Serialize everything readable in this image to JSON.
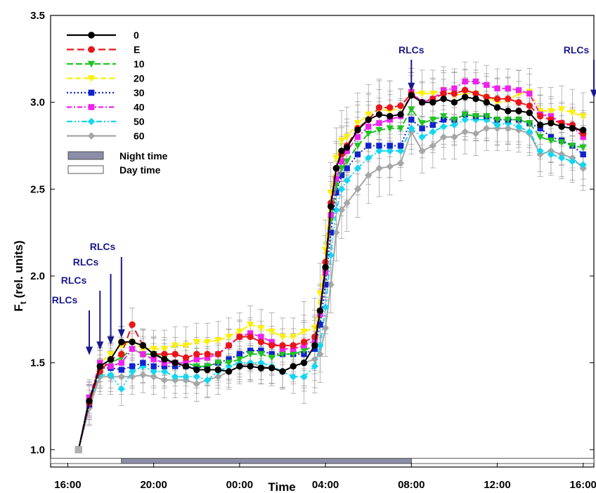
{
  "chart_data": {
    "type": "line",
    "title": "",
    "xlabel": "Time",
    "ylabel": "Ft (rel. units)",
    "ylabel_main": "F",
    "ylabel_sub": "t",
    "ylabel_rest": "(rel. units)",
    "ylim": [
      0.9,
      3.5
    ],
    "xlim_hours": [
      15.2,
      16.5
    ],
    "xticks": [
      {
        "hour": 16,
        "label": "16:00"
      },
      {
        "hour": 20,
        "label": "20:00"
      },
      {
        "hour": 24,
        "label": "00:00"
      },
      {
        "hour": 28,
        "label": "04:00"
      },
      {
        "hour": 32,
        "label": "08:00"
      },
      {
        "hour": 36,
        "label": "12:00"
      },
      {
        "hour": 40,
        "label": "16:00"
      }
    ],
    "yticks": [
      {
        "value": 1.0,
        "label": "1.0"
      },
      {
        "value": 1.5,
        "label": "1.5"
      },
      {
        "value": 2.0,
        "label": "2.0"
      },
      {
        "value": 2.5,
        "label": "2.5"
      },
      {
        "value": 3.0,
        "label": "3.0"
      },
      {
        "value": 3.5,
        "label": "3.5"
      }
    ],
    "x": [
      16.5,
      17.0,
      17.5,
      18.0,
      18.5,
      19.0,
      19.5,
      20.0,
      20.5,
      21.0,
      21.5,
      22.0,
      22.5,
      23.0,
      23.5,
      24.0,
      24.5,
      25.0,
      25.5,
      26.0,
      26.5,
      27.0,
      27.5,
      27.75,
      28.0,
      28.25,
      28.5,
      28.75,
      29.0,
      29.5,
      30.0,
      30.5,
      31.0,
      31.5,
      32.0,
      32.5,
      33.0,
      33.5,
      34.0,
      34.5,
      35.0,
      35.5,
      36.0,
      36.5,
      37.0,
      37.5,
      38.0,
      38.5,
      39.0,
      39.5,
      40.0
    ],
    "series": [
      {
        "name": "0",
        "color": "#000000",
        "dash": "",
        "marker": "circle",
        "values": [
          1.0,
          1.28,
          1.48,
          1.52,
          1.62,
          1.62,
          1.6,
          1.55,
          1.52,
          1.5,
          1.48,
          1.46,
          1.46,
          1.46,
          1.45,
          1.48,
          1.48,
          1.47,
          1.47,
          1.45,
          1.48,
          1.5,
          1.6,
          1.8,
          2.05,
          2.4,
          2.62,
          2.72,
          2.74,
          2.84,
          2.9,
          2.93,
          2.92,
          2.93,
          3.04,
          3.0,
          3.0,
          3.02,
          3.0,
          3.03,
          3.02,
          3.0,
          2.97,
          2.95,
          2.95,
          2.94,
          2.87,
          2.88,
          2.86,
          2.85,
          2.84
        ]
      },
      {
        "name": "E",
        "color": "#e8161b",
        "dash": "10,5",
        "marker": "circle",
        "values": [
          1.0,
          1.27,
          1.45,
          1.52,
          1.55,
          1.72,
          1.6,
          1.55,
          1.55,
          1.55,
          1.53,
          1.55,
          1.55,
          1.55,
          1.6,
          1.65,
          1.65,
          1.62,
          1.6,
          1.6,
          1.6,
          1.62,
          1.65,
          1.8,
          2.08,
          2.42,
          2.62,
          2.7,
          2.75,
          2.85,
          2.9,
          2.97,
          2.97,
          2.98,
          3.05,
          3.0,
          3.02,
          3.05,
          3.05,
          3.07,
          3.05,
          3.03,
          3.02,
          3.02,
          3.0,
          2.98,
          2.92,
          2.9,
          2.88,
          2.87,
          2.82
        ]
      },
      {
        "name": "10",
        "color": "#1fc41f",
        "dash": "9,4",
        "marker": "tridown",
        "values": [
          1.0,
          1.3,
          1.47,
          1.5,
          1.53,
          1.58,
          1.55,
          1.55,
          1.53,
          1.5,
          1.5,
          1.48,
          1.48,
          1.5,
          1.5,
          1.52,
          1.55,
          1.55,
          1.53,
          1.55,
          1.55,
          1.57,
          1.6,
          1.78,
          2.02,
          2.32,
          2.52,
          2.62,
          2.66,
          2.75,
          2.82,
          2.84,
          2.85,
          2.85,
          2.96,
          2.88,
          2.9,
          2.92,
          2.9,
          2.93,
          2.92,
          2.92,
          2.9,
          2.9,
          2.9,
          2.88,
          2.8,
          2.78,
          2.77,
          2.75,
          2.74
        ]
      },
      {
        "name": "20",
        "color": "#fbf000",
        "dash": "8,4",
        "marker": "tridown",
        "values": [
          1.0,
          1.28,
          1.5,
          1.55,
          1.6,
          1.62,
          1.58,
          1.58,
          1.58,
          1.6,
          1.6,
          1.62,
          1.62,
          1.63,
          1.65,
          1.68,
          1.72,
          1.7,
          1.68,
          1.65,
          1.65,
          1.68,
          1.7,
          1.9,
          2.15,
          2.48,
          2.68,
          2.78,
          2.8,
          2.88,
          2.93,
          2.96,
          2.95,
          2.97,
          3.06,
          3.05,
          3.05,
          3.07,
          3.04,
          3.05,
          3.05,
          3.03,
          3.0,
          3.01,
          3.05,
          3.06,
          2.95,
          2.95,
          2.96,
          2.94,
          2.92
        ]
      },
      {
        "name": "30",
        "color": "#1122cc",
        "dash": "2,3",
        "marker": "square",
        "values": [
          1.0,
          1.26,
          1.47,
          1.47,
          1.46,
          1.48,
          1.5,
          1.48,
          1.48,
          1.48,
          1.48,
          1.47,
          1.48,
          1.5,
          1.52,
          1.55,
          1.57,
          1.57,
          1.55,
          1.55,
          1.55,
          1.55,
          1.58,
          1.72,
          1.95,
          2.25,
          2.48,
          2.58,
          2.62,
          2.7,
          2.75,
          2.75,
          2.75,
          2.75,
          2.9,
          2.85,
          2.87,
          2.9,
          2.9,
          2.93,
          2.92,
          2.92,
          2.9,
          2.9,
          2.9,
          2.88,
          2.85,
          2.8,
          2.78,
          2.75,
          2.7
        ]
      },
      {
        "name": "40",
        "color": "#ee22ee",
        "dash": "7,3,2,3",
        "marker": "square",
        "values": [
          1.0,
          1.3,
          1.5,
          1.48,
          1.5,
          1.58,
          1.55,
          1.52,
          1.5,
          1.5,
          1.5,
          1.52,
          1.53,
          1.55,
          1.6,
          1.65,
          1.67,
          1.65,
          1.62,
          1.58,
          1.58,
          1.6,
          1.63,
          1.78,
          2.02,
          2.35,
          2.56,
          2.66,
          2.72,
          2.8,
          2.86,
          2.88,
          2.9,
          2.92,
          3.06,
          3.0,
          3.02,
          3.07,
          3.08,
          3.12,
          3.12,
          3.1,
          3.08,
          3.08,
          3.07,
          3.05,
          2.93,
          2.92,
          2.88,
          2.86,
          2.8
        ]
      },
      {
        "name": "50",
        "color": "#13d6f0",
        "dash": "8,3,2,3,2,3",
        "marker": "diamond",
        "values": [
          1.0,
          1.28,
          1.43,
          1.43,
          1.35,
          1.45,
          1.48,
          1.45,
          1.45,
          1.42,
          1.42,
          1.42,
          1.4,
          1.45,
          1.48,
          1.5,
          1.5,
          1.5,
          1.48,
          1.45,
          1.42,
          1.42,
          1.48,
          1.6,
          1.82,
          2.12,
          2.38,
          2.5,
          2.55,
          2.62,
          2.68,
          2.72,
          2.72,
          2.72,
          2.85,
          2.8,
          2.83,
          2.86,
          2.87,
          2.9,
          2.9,
          2.9,
          2.87,
          2.88,
          2.86,
          2.83,
          2.72,
          2.7,
          2.68,
          2.66,
          2.64
        ]
      },
      {
        "name": "60",
        "color": "#a6a6a6",
        "dash": "",
        "marker": "diamond",
        "values": [
          1.0,
          1.24,
          1.42,
          1.42,
          1.42,
          1.42,
          1.43,
          1.42,
          1.4,
          1.4,
          1.4,
          1.38,
          1.4,
          1.42,
          1.45,
          1.48,
          1.5,
          1.48,
          1.47,
          1.45,
          1.48,
          1.5,
          1.52,
          1.55,
          1.7,
          1.95,
          2.25,
          2.38,
          2.42,
          2.5,
          2.58,
          2.62,
          2.63,
          2.65,
          2.83,
          2.72,
          2.75,
          2.8,
          2.8,
          2.83,
          2.82,
          2.85,
          2.85,
          2.85,
          2.84,
          2.82,
          2.7,
          2.72,
          2.7,
          2.68,
          2.62
        ]
      }
    ],
    "error_bar_halfwidth": 0.12,
    "period_bar": [
      {
        "label": "Day time",
        "start_hour": 15.2,
        "end_hour": 18.5,
        "fill": "#ffffff"
      },
      {
        "label": "Night time",
        "start_hour": 18.5,
        "end_hour": 32.0,
        "fill": "#8c8ea8"
      },
      {
        "label": "Day time",
        "start_hour": 32.0,
        "end_hour": 40.5,
        "fill": "#ffffff"
      }
    ],
    "legend": {
      "placement": "top-left",
      "night_label": "Night time",
      "day_label": "Day time",
      "night_fill": "#8c8ea8",
      "day_fill": "#ffffff"
    },
    "rlc_annotations": [
      {
        "label": "RLCs",
        "hour": 17.0,
        "y_tip": 1.52
      },
      {
        "label": "RLCs",
        "hour": 17.5,
        "y_tip": 1.55
      },
      {
        "label": "RLCs",
        "hour": 18.0,
        "y_tip": 1.58
      },
      {
        "label": "RLCs",
        "hour": 18.5,
        "y_tip": 1.62
      },
      {
        "label": "RLCs",
        "hour": 32.0,
        "y_tip": 3.04
      },
      {
        "label": "RLCs",
        "hour": 40.5,
        "y_tip": 3.0
      }
    ],
    "rlc_color": "#1a1a8c"
  }
}
